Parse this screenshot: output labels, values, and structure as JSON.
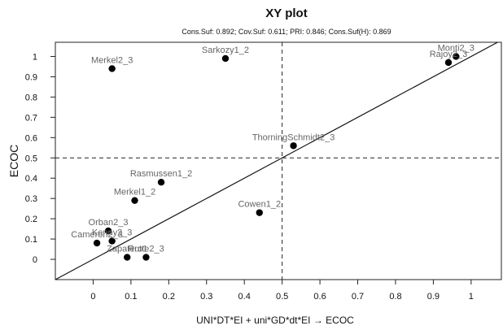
{
  "chart_data": {
    "type": "scatter",
    "title": "XY plot",
    "subtitle": "Cons.Suf: 0.892; Cov.Suf: 0.611; PRI: 0.846; Cons.Suf(H): 0.869",
    "xlabel": "UNI*DT*EI + uni*GD*dt*EI → ECOC",
    "ylabel": "ECOC",
    "xlim": [
      -0.1,
      1.08
    ],
    "ylim": [
      -0.1,
      1.07
    ],
    "xticks": [
      "0",
      "0.1",
      "0.2",
      "0.3",
      "0.4",
      "0.5",
      "0.6",
      "0.7",
      "0.8",
      "0.9",
      "1"
    ],
    "yticks": [
      "0",
      "0.1",
      "0.2",
      "0.3",
      "0.4",
      "0.5",
      "0.6",
      "0.7",
      "0.8",
      "0.9",
      "1"
    ],
    "reference_lines": {
      "vertical_x": 0.5,
      "horizontal_y": 0.5,
      "diagonal": true
    },
    "points": [
      {
        "label": "Merkel2_3",
        "x": 0.05,
        "y": 0.94
      },
      {
        "label": "Sarkozy1_2",
        "x": 0.35,
        "y": 0.99
      },
      {
        "label": "Monti2_3",
        "x": 0.96,
        "y": 1.0
      },
      {
        "label": "Rajoy2_3",
        "x": 0.94,
        "y": 0.97
      },
      {
        "label": "ThorningSchmidt2_3",
        "x": 0.53,
        "y": 0.56
      },
      {
        "label": "Rasmussen1_2",
        "x": 0.18,
        "y": 0.38
      },
      {
        "label": "Merkel1_2",
        "x": 0.11,
        "y": 0.29
      },
      {
        "label": "Cowen1_2",
        "x": 0.44,
        "y": 0.23
      },
      {
        "label": "Orban2_3",
        "x": 0.04,
        "y": 0.14
      },
      {
        "label": "Kenny2_3",
        "x": 0.05,
        "y": 0.09
      },
      {
        "label": "Cameron2_3",
        "x": 0.01,
        "y": 0.08
      },
      {
        "label": "Zapatero1",
        "x": 0.09,
        "y": 0.01
      },
      {
        "label": "Rutte2_3",
        "x": 0.14,
        "y": 0.01
      }
    ]
  }
}
